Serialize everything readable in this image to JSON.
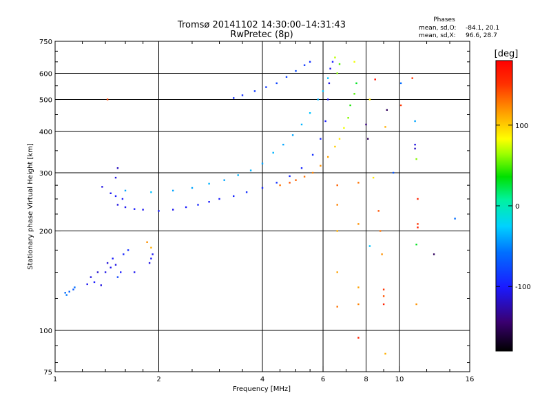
{
  "chart_data": {
    "type": "scatter",
    "title": "Tromsø 20141102 14:30:00–14:31:43",
    "subtitle": "RwPretec (8p)",
    "xlabel": "Frequency [MHz]",
    "ylabel": "Stationary phase Virtual Height [km]",
    "x_scale": "log",
    "y_scale": "log",
    "xlim": [
      1,
      16
    ],
    "ylim": [
      75,
      750
    ],
    "grid": true,
    "x_ticks": [
      {
        "value": 1,
        "label": "1"
      },
      {
        "value": 2,
        "label": "2"
      },
      {
        "value": 4,
        "label": "4"
      },
      {
        "value": 6,
        "label": "6"
      },
      {
        "value": 8,
        "label": "8"
      },
      {
        "value": 10,
        "label": "10"
      },
      {
        "value": 16,
        "label": "16"
      }
    ],
    "x_grid": [
      2,
      4,
      6,
      8,
      10
    ],
    "y_ticks": [
      {
        "value": 75,
        "label": "75"
      },
      {
        "value": 100,
        "label": "100"
      },
      {
        "value": 200,
        "label": "200"
      },
      {
        "value": 300,
        "label": "300"
      },
      {
        "value": 400,
        "label": "400"
      },
      {
        "value": 500,
        "label": "500"
      },
      {
        "value": 600,
        "label": "600"
      },
      {
        "value": 750,
        "label": "750"
      }
    ],
    "y_grid": [
      100,
      200,
      300,
      400,
      500,
      600
    ],
    "stats": {
      "header": "Phases",
      "o_label": "mean, sd,O:",
      "o_values": "-84.1, 20.1",
      "x_label": "mean, sd,X:",
      "x_values": "96.6, 28.7"
    },
    "colorbar": {
      "label": "[deg]",
      "min": -180,
      "max": 180,
      "ticks": [
        {
          "value": 100,
          "label": "100"
        },
        {
          "value": 0,
          "label": "0"
        },
        {
          "value": -100,
          "label": "-100"
        }
      ]
    },
    "series": [
      {
        "points": [
          [
            1.07,
            130,
            -60
          ],
          [
            1.08,
            128,
            -55
          ],
          [
            1.1,
            131,
            -65
          ],
          [
            1.13,
            133,
            -70
          ],
          [
            1.14,
            135,
            -60
          ],
          [
            1.24,
            138,
            -105
          ],
          [
            1.27,
            145,
            -110
          ],
          [
            1.3,
            140,
            -100
          ],
          [
            1.33,
            150,
            -115
          ],
          [
            1.36,
            137,
            -110
          ],
          [
            1.4,
            150,
            -108
          ],
          [
            1.42,
            160,
            -112
          ],
          [
            1.45,
            155,
            -105
          ],
          [
            1.47,
            165,
            -100
          ],
          [
            1.5,
            158,
            -110
          ],
          [
            1.52,
            145,
            -80
          ],
          [
            1.55,
            150,
            -100
          ],
          [
            1.58,
            170,
            -95
          ],
          [
            1.63,
            175,
            -90
          ],
          [
            1.7,
            150,
            -105
          ],
          [
            1.88,
            160,
            -110
          ],
          [
            1.9,
            165,
            -100
          ],
          [
            1.92,
            170,
            -105
          ]
        ]
      },
      {
        "points": [
          [
            1.37,
            272,
            -110
          ],
          [
            1.45,
            260,
            -105
          ],
          [
            1.5,
            290,
            -110
          ],
          [
            1.5,
            255,
            -100
          ],
          [
            1.52,
            240,
            -110
          ],
          [
            1.52,
            310,
            -120
          ],
          [
            1.57,
            250,
            -100
          ],
          [
            1.6,
            236,
            -105
          ],
          [
            1.7,
            233,
            -100
          ],
          [
            1.8,
            232,
            -105
          ],
          [
            2.0,
            230,
            -100
          ],
          [
            2.2,
            232,
            -105
          ],
          [
            2.4,
            236,
            -100
          ],
          [
            2.6,
            240,
            -95
          ],
          [
            2.8,
            245,
            -100
          ],
          [
            3.0,
            250,
            -100
          ],
          [
            3.3,
            255,
            -95
          ],
          [
            3.6,
            262,
            -90
          ],
          [
            4.0,
            270,
            -95
          ],
          [
            4.4,
            280,
            -90
          ],
          [
            4.8,
            293,
            -95
          ],
          [
            5.2,
            310,
            -95
          ],
          [
            5.6,
            340,
            -90
          ],
          [
            5.9,
            380,
            -95
          ],
          [
            6.1,
            430,
            -100
          ],
          [
            6.2,
            500,
            -105
          ],
          [
            6.25,
            560,
            -110
          ],
          [
            6.3,
            620,
            -105
          ],
          [
            6.4,
            650,
            -100
          ]
        ]
      },
      {
        "points": [
          [
            1.6,
            265,
            -40
          ],
          [
            1.9,
            262,
            -30
          ],
          [
            2.2,
            265,
            -40
          ],
          [
            2.5,
            270,
            -40
          ],
          [
            2.8,
            278,
            -35
          ],
          [
            3.1,
            285,
            -40
          ],
          [
            3.4,
            295,
            -35
          ],
          [
            3.7,
            305,
            -35
          ],
          [
            4.0,
            320,
            -40
          ],
          [
            4.3,
            345,
            -35
          ],
          [
            4.6,
            365,
            -40
          ],
          [
            4.9,
            390,
            -40
          ],
          [
            5.2,
            420,
            -35
          ],
          [
            5.5,
            455,
            -30
          ],
          [
            5.8,
            500,
            -35
          ],
          [
            6.0,
            530,
            -30
          ],
          [
            6.2,
            580,
            -30
          ]
        ]
      },
      {
        "points": [
          [
            3.3,
            505,
            -90
          ],
          [
            3.5,
            515,
            -90
          ],
          [
            3.8,
            530,
            -85
          ],
          [
            4.1,
            545,
            -85
          ],
          [
            4.4,
            560,
            -80
          ],
          [
            4.7,
            585,
            -80
          ],
          [
            5.0,
            610,
            -75
          ],
          [
            5.3,
            635,
            -85
          ],
          [
            5.5,
            650,
            -90
          ]
        ]
      },
      {
        "points": [
          [
            4.5,
            275,
            130
          ],
          [
            4.8,
            280,
            140
          ],
          [
            5.0,
            285,
            135
          ],
          [
            5.3,
            292,
            130
          ],
          [
            5.6,
            300,
            125
          ],
          [
            5.9,
            315,
            120
          ],
          [
            6.2,
            335,
            115
          ],
          [
            6.5,
            360,
            100
          ],
          [
            6.7,
            380,
            90
          ],
          [
            6.9,
            410,
            80
          ],
          [
            7.1,
            440,
            60
          ],
          [
            7.2,
            480,
            40
          ],
          [
            7.4,
            520,
            50
          ],
          [
            7.5,
            560,
            30
          ],
          [
            6.6,
            600,
            60
          ],
          [
            6.7,
            640,
            50
          ],
          [
            6.5,
            670,
            70
          ]
        ]
      },
      {
        "points": [
          [
            1.42,
            500,
            145
          ],
          [
            1.85,
            185,
            120
          ],
          [
            1.9,
            178,
            110
          ],
          [
            6.6,
            275,
            135
          ],
          [
            6.6,
            240,
            125
          ],
          [
            6.6,
            150,
            115
          ],
          [
            6.6,
            118,
            130
          ],
          [
            6.6,
            200,
            110
          ],
          [
            7.6,
            280,
            130
          ],
          [
            7.6,
            210,
            120
          ],
          [
            7.6,
            135,
            115
          ],
          [
            7.6,
            120,
            125
          ],
          [
            8.0,
            420,
            -140
          ],
          [
            8.1,
            380,
            -150
          ],
          [
            8.4,
            290,
            90
          ],
          [
            8.5,
            575,
            170
          ],
          [
            8.7,
            230,
            140
          ],
          [
            8.8,
            200,
            130
          ],
          [
            8.9,
            170,
            120
          ],
          [
            9.0,
            133,
            150
          ],
          [
            9.0,
            127,
            140
          ],
          [
            9.0,
            120,
            160
          ],
          [
            9.1,
            413,
            110
          ],
          [
            9.1,
            85,
            110
          ],
          [
            9.2,
            465,
            -150
          ],
          [
            8.2,
            500,
            90
          ],
          [
            8.2,
            180,
            -30
          ],
          [
            7.4,
            650,
            80
          ],
          [
            7.6,
            95,
            160
          ],
          [
            10.9,
            580,
            150
          ],
          [
            11.1,
            365,
            -110
          ],
          [
            11.1,
            355,
            -120
          ],
          [
            11.2,
            330,
            60
          ],
          [
            11.3,
            250,
            160
          ],
          [
            11.3,
            210,
            150
          ],
          [
            11.3,
            205,
            160
          ],
          [
            11.2,
            182,
            30
          ],
          [
            11.2,
            120,
            120
          ],
          [
            11.1,
            430,
            -40
          ],
          [
            10.1,
            560,
            -60
          ],
          [
            9.6,
            300,
            -70
          ],
          [
            10.1,
            480,
            150
          ],
          [
            12.6,
            170,
            -150
          ],
          [
            14.5,
            218,
            -60
          ]
        ]
      }
    ]
  }
}
